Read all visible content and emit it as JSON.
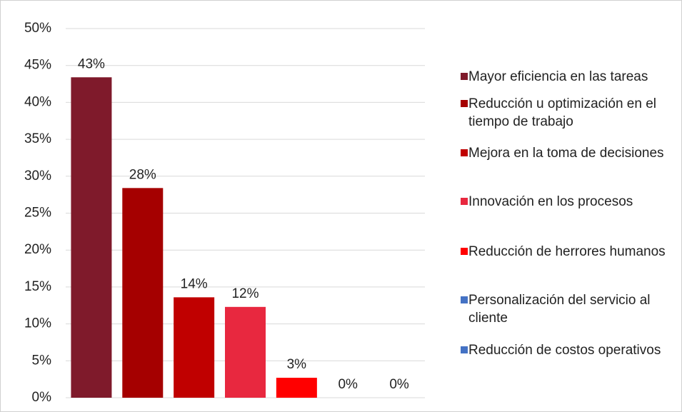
{
  "chart_data": {
    "type": "bar",
    "series": [
      {
        "name": "Mayor eficiencia en las tareas",
        "color": "#7f1a2b",
        "values": [
          43.4
        ],
        "value_labels": [
          "43%"
        ]
      },
      {
        "name": "Reducción u optimización en el tiempo de trabajo",
        "color": "#a50000",
        "values": [
          28.4
        ],
        "value_labels": [
          "28%"
        ]
      },
      {
        "name": "Mejora en la toma de decisiones",
        "color": "#c00000",
        "values": [
          13.6
        ],
        "value_labels": [
          "14%"
        ]
      },
      {
        "name": "Innovación en los procesos",
        "color": "#e8283f",
        "values": [
          12.3
        ],
        "value_labels": [
          "12%"
        ]
      },
      {
        "name": "Reducción de herrores humanos",
        "color": "#ff0000",
        "values": [
          2.7
        ],
        "value_labels": [
          "3%"
        ]
      },
      {
        "name": "Personalización del servicio al cliente",
        "color": "#4472c4",
        "values": [
          0
        ],
        "value_labels": [
          "0%"
        ]
      },
      {
        "name": "Reducción de costos operativos",
        "color": "#4472c4",
        "values": [
          0
        ],
        "value_labels": [
          "0%"
        ]
      }
    ],
    "ylim": [
      0,
      50
    ],
    "yticks": [
      {
        "value": 0,
        "label": "0%"
      },
      {
        "value": 5,
        "label": "5%"
      },
      {
        "value": 10,
        "label": "10%"
      },
      {
        "value": 15,
        "label": "15%"
      },
      {
        "value": 20,
        "label": "20%"
      },
      {
        "value": 25,
        "label": "25%"
      },
      {
        "value": 30,
        "label": "30%"
      },
      {
        "value": 35,
        "label": "35%"
      },
      {
        "value": 40,
        "label": "40%"
      },
      {
        "value": 45,
        "label": "45%"
      },
      {
        "value": 50,
        "label": "50%"
      }
    ],
    "grid": true,
    "legend": "right"
  }
}
